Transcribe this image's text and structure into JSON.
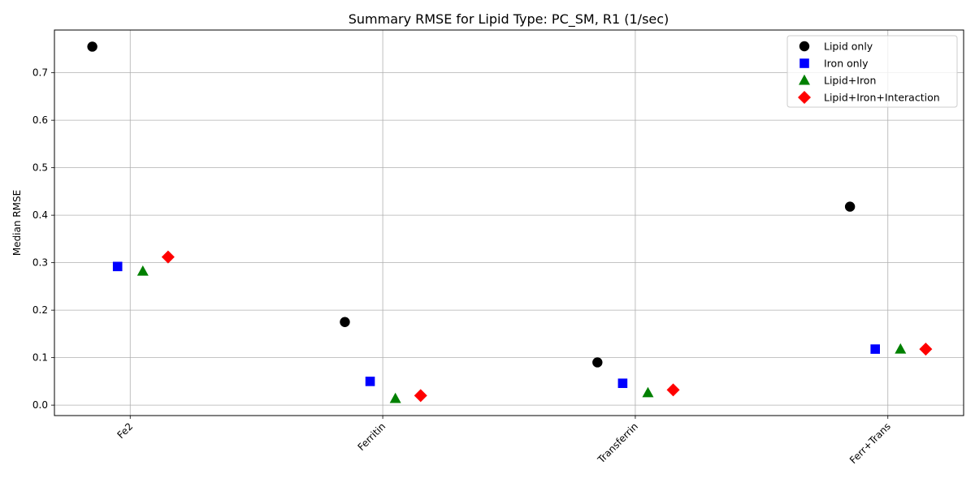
{
  "chart_data": {
    "type": "scatter",
    "title": "Summary RMSE for Lipid Type: PC_SM, R1 (1/sec)",
    "xlabel": "",
    "ylabel": "Median RMSE",
    "categories": [
      "Fe2",
      "Ferritin",
      "Transferrin",
      "Ferr+Trans"
    ],
    "ylim": [
      -0.022,
      0.79
    ],
    "yticks": [
      0.0,
      0.1,
      0.2,
      0.3,
      0.4,
      0.5,
      0.6,
      0.7
    ],
    "ytick_labels": [
      "0.0",
      "0.1",
      "0.2",
      "0.3",
      "0.4",
      "0.5",
      "0.6",
      "0.7"
    ],
    "grid": true,
    "legend_position": "top-right",
    "series": [
      {
        "name": "Lipid only",
        "marker": "circle",
        "color": "#000000",
        "offset": -0.15,
        "values": [
          0.755,
          0.175,
          0.09,
          0.418
        ]
      },
      {
        "name": "Iron only",
        "marker": "square",
        "color": "#0000ff",
        "offset": -0.05,
        "values": [
          0.292,
          0.05,
          0.046,
          0.118
        ]
      },
      {
        "name": "Lipid+Iron",
        "marker": "triangle",
        "color": "#008000",
        "offset": 0.05,
        "values": [
          0.282,
          0.014,
          0.026,
          0.118
        ]
      },
      {
        "name": "Lipid+Iron+Interaction",
        "marker": "diamond",
        "color": "#ff0000",
        "offset": 0.15,
        "values": [
          0.312,
          0.02,
          0.032,
          0.118
        ]
      }
    ]
  }
}
